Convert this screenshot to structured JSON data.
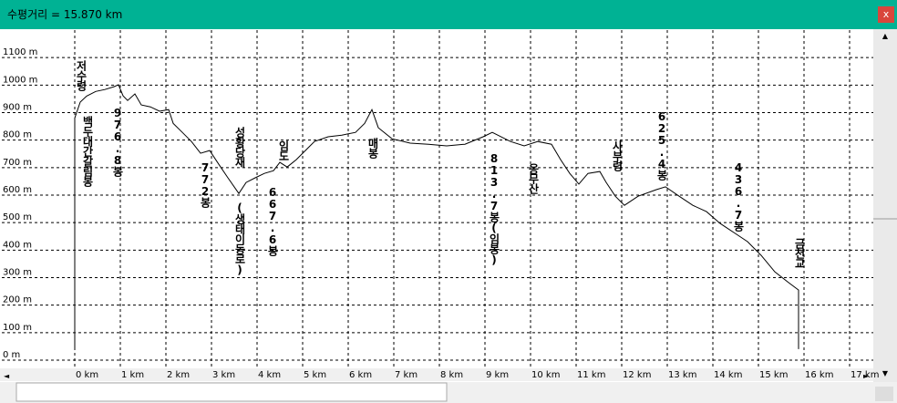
{
  "window": {
    "title": "수평거리 = 15.870 km",
    "close": "x"
  },
  "chart_data": {
    "type": "line",
    "x": [
      0,
      0,
      0.12,
      0.26,
      0.46,
      0.66,
      0.86,
      0.96,
      1.06,
      1.16,
      1.32,
      1.46,
      1.66,
      1.86,
      2.06,
      2.16,
      2.36,
      2.56,
      2.76,
      2.96,
      3.16,
      3.36,
      3.6,
      3.76,
      3.96,
      4.16,
      4.36,
      4.5,
      4.66,
      4.86,
      5.06,
      5.26,
      5.56,
      5.86,
      6.16,
      6.36,
      6.52,
      6.66,
      6.96,
      7.36,
      7.76,
      8.16,
      8.56,
      8.96,
      9.16,
      9.56,
      9.86,
      10.16,
      10.46,
      10.66,
      10.86,
      11.06,
      11.26,
      11.52,
      11.66,
      11.86,
      12.06,
      12.36,
      12.76,
      12.96,
      13.26,
      13.56,
      13.86,
      14.16,
      14.46,
      14.76,
      15.06,
      15.36,
      15.66,
      15.88,
      15.88
    ],
    "series": [
      {
        "color": "#000000",
        "values": [
          40,
          880,
          938,
          960,
          977,
          984,
          994,
          1001,
          961,
          944,
          968,
          928,
          921,
          905,
          911,
          861,
          828,
          795,
          752,
          762,
          712,
          663,
          606,
          646,
          663,
          679,
          689,
          719,
          702,
          729,
          762,
          795,
          812,
          818,
          828,
          861,
          911,
          845,
          805,
          789,
          785,
          779,
          785,
          812,
          828,
          795,
          779,
          795,
          785,
          729,
          679,
          640,
          679,
          686,
          646,
          596,
          563,
          596,
          620,
          630,
          596,
          563,
          540,
          497,
          464,
          431,
          381,
          321,
          282,
          255,
          40
        ]
      }
    ],
    "xlim": [
      -1.64,
      17.52
    ],
    "ylim": [
      0,
      1200
    ],
    "xticks": [
      {
        "value": 0,
        "label": "0 km"
      },
      {
        "value": 1,
        "label": "1 km"
      },
      {
        "value": 2,
        "label": "2 km"
      },
      {
        "value": 3,
        "label": "3 km"
      },
      {
        "value": 4,
        "label": "4 km"
      },
      {
        "value": 5,
        "label": "5 km"
      },
      {
        "value": 6,
        "label": "6 km"
      },
      {
        "value": 7,
        "label": "7 km"
      },
      {
        "value": 8,
        "label": "8 km"
      },
      {
        "value": 9,
        "label": "9 km"
      },
      {
        "value": 10,
        "label": "10 km"
      },
      {
        "value": 11,
        "label": "11 km"
      },
      {
        "value": 12,
        "label": "12 km"
      },
      {
        "value": 13,
        "label": "13 km"
      },
      {
        "value": 14,
        "label": "14 km"
      },
      {
        "value": 15,
        "label": "15 km"
      },
      {
        "value": 16,
        "label": "16 km"
      },
      {
        "value": 17,
        "label": "17 km"
      }
    ],
    "yticks": [
      {
        "value": 0,
        "label": "0 m"
      },
      {
        "value": 100,
        "label": "100 m"
      },
      {
        "value": 200,
        "label": "200 m"
      },
      {
        "value": 300,
        "label": "300 m"
      },
      {
        "value": 400,
        "label": "400 m"
      },
      {
        "value": 500,
        "label": "500 m"
      },
      {
        "value": 600,
        "label": "600 m"
      },
      {
        "value": 700,
        "label": "700 m"
      },
      {
        "value": 800,
        "label": "800 m"
      },
      {
        "value": 900,
        "label": "900 m"
      },
      {
        "value": 1000,
        "label": "1000 m"
      },
      {
        "value": 1100,
        "label": "1100 m"
      }
    ],
    "grid": true,
    "annotations": [
      "저수령",
      "백두대간갈림봉",
      "976.8봉",
      "772봉",
      "성황당재",
      "(생태이동로)",
      "임도",
      "667.6봉",
      "매봉",
      "813.7봉(임봉)",
      "옹무산",
      "사부령",
      "625.4봉",
      "436.7봉",
      "금천교"
    ]
  }
}
